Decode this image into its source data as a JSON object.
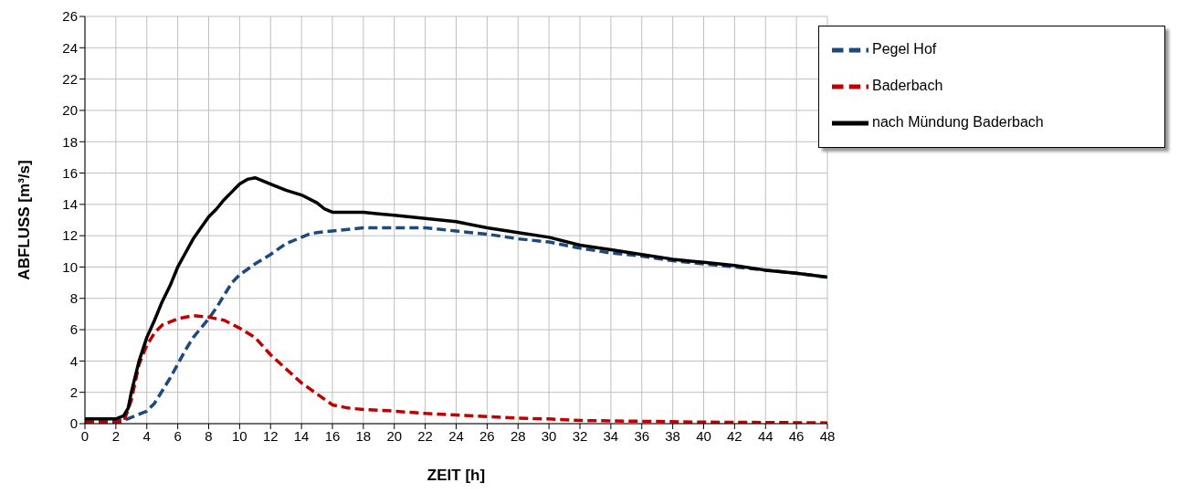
{
  "chart_data": {
    "type": "line",
    "xlabel": "ZEIT [h]",
    "ylabel": "ABFLUSS [m³/s]",
    "xlim": [
      0,
      48
    ],
    "xticks": [
      0,
      2,
      4,
      6,
      8,
      10,
      12,
      14,
      16,
      18,
      20,
      22,
      24,
      26,
      28,
      30,
      32,
      34,
      36,
      38,
      40,
      42,
      44,
      46,
      48
    ],
    "ylim": [
      0,
      26
    ],
    "yticks": [
      0,
      2,
      4,
      6,
      8,
      10,
      12,
      14,
      16,
      18,
      20,
      22,
      24,
      26
    ],
    "grid": true,
    "legend": "top right",
    "marker": "none",
    "series": [
      {
        "name": "Pegel Hof",
        "color": "#1f497d",
        "line_style": "dashed",
        "x": [
          0,
          2.5,
          3,
          4,
          4.5,
          5,
          5.5,
          6,
          6.5,
          7,
          7.5,
          8,
          8.5,
          9,
          9.5,
          10,
          11,
          12,
          13,
          14,
          14.5,
          15,
          16,
          18,
          20,
          22,
          24,
          26,
          28,
          30,
          32,
          34,
          36,
          38,
          40,
          42,
          44,
          46,
          48
        ],
        "values": [
          0.2,
          0.2,
          0.4,
          0.8,
          1.3,
          2.1,
          2.9,
          3.8,
          4.7,
          5.5,
          6.1,
          6.7,
          7.4,
          8.2,
          9.0,
          9.5,
          10.2,
          10.8,
          11.5,
          11.9,
          12.1,
          12.2,
          12.3,
          12.5,
          12.5,
          12.5,
          12.3,
          12.1,
          11.8,
          11.6,
          11.2,
          10.9,
          10.7,
          10.4,
          10.2,
          10.0,
          9.8,
          9.6,
          9.35
        ]
      },
      {
        "name": "Baderbach",
        "color": "#c00000",
        "line_style": "dashed",
        "x": [
          0,
          2.5,
          3,
          3.5,
          4,
          4.5,
          5,
          6,
          7,
          8,
          9,
          10,
          11,
          12,
          13,
          14,
          15,
          16,
          17,
          18,
          20,
          22,
          24,
          26,
          28,
          30,
          32,
          36,
          40,
          48
        ],
        "values": [
          0.1,
          0.1,
          1.5,
          3.8,
          5,
          5.8,
          6.3,
          6.7,
          6.9,
          6.8,
          6.6,
          6.1,
          5.5,
          4.4,
          3.5,
          2.6,
          1.9,
          1.2,
          1.0,
          0.9,
          0.8,
          0.65,
          0.55,
          0.45,
          0.35,
          0.3,
          0.2,
          0.15,
          0.1,
          0.05
        ]
      },
      {
        "name": "nach Mündung Baderbach",
        "color": "#000000",
        "line_style": "solid",
        "x": [
          0,
          2,
          2.5,
          2.8,
          3,
          3.5,
          4,
          4.5,
          5,
          5.5,
          6,
          6.5,
          7,
          7.5,
          8,
          8.5,
          9,
          9.5,
          10,
          10.5,
          11,
          11.5,
          12,
          13,
          14,
          15,
          15.5,
          16,
          18,
          19,
          20,
          22,
          24,
          26,
          28,
          30,
          32,
          34,
          36,
          38,
          40,
          42,
          44,
          46,
          48
        ],
        "values": [
          0.3,
          0.3,
          0.5,
          1,
          2,
          4,
          5.5,
          6.6,
          7.8,
          8.8,
          10,
          10.9,
          11.8,
          12.5,
          13.2,
          13.7,
          14.3,
          14.8,
          15.3,
          15.6,
          15.7,
          15.5,
          15.3,
          14.9,
          14.6,
          14.1,
          13.7,
          13.5,
          13.5,
          13.4,
          13.3,
          13.1,
          12.9,
          12.5,
          12.2,
          11.9,
          11.4,
          11.1,
          10.8,
          10.5,
          10.3,
          10.1,
          9.8,
          9.6,
          9.35
        ]
      }
    ]
  }
}
